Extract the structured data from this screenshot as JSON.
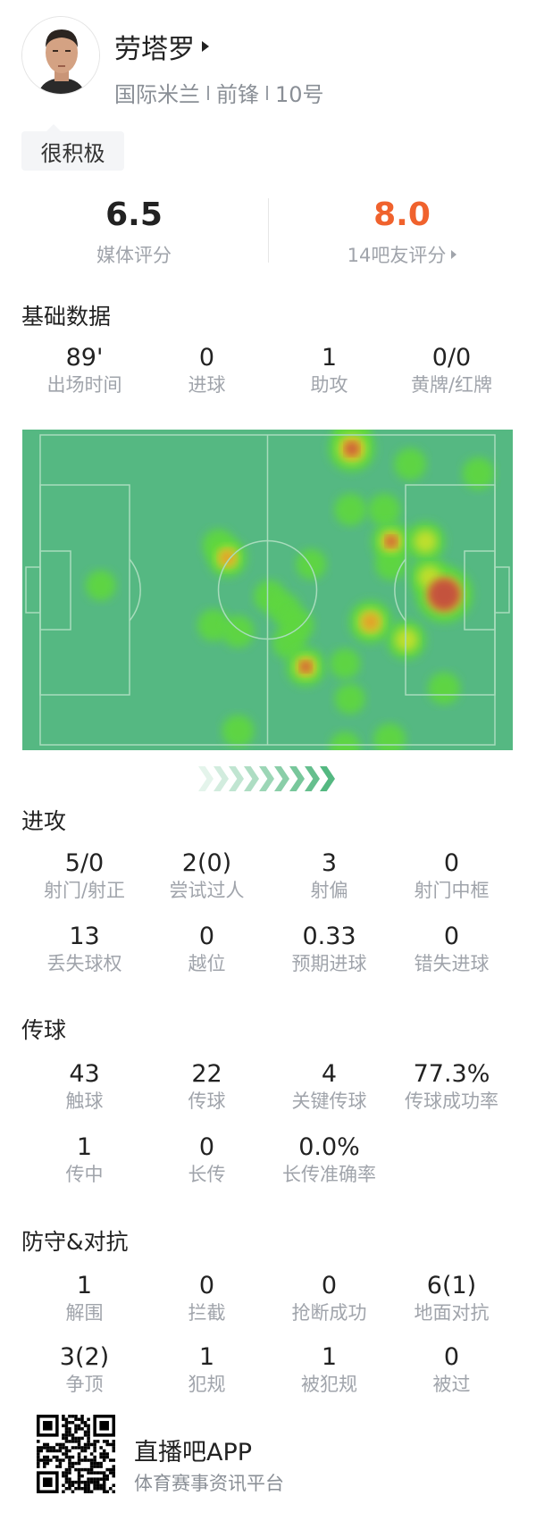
{
  "player": {
    "name": "劳塔罗",
    "team": "国际米兰",
    "position": "前锋",
    "number": "10号",
    "tag": "很积极"
  },
  "ratings": {
    "media": {
      "value": "6.5",
      "label": "媒体评分",
      "color": "#222222"
    },
    "fans": {
      "value": "8.0",
      "label": "14吧友评分",
      "color": "#f0622d"
    }
  },
  "sections": [
    {
      "title": "基础数据",
      "rows": [
        [
          {
            "value": "89'",
            "label": "出场时间"
          },
          {
            "value": "0",
            "label": "进球"
          },
          {
            "value": "1",
            "label": "助攻"
          },
          {
            "value": "0/0",
            "label": "黄牌/红牌"
          }
        ]
      ]
    },
    {
      "title": "进攻",
      "rows": [
        [
          {
            "value": "5/0",
            "label": "射门/射正"
          },
          {
            "value": "2(0)",
            "label": "尝试过人"
          },
          {
            "value": "3",
            "label": "射偏"
          },
          {
            "value": "0",
            "label": "射门中框"
          }
        ],
        [
          {
            "value": "13",
            "label": "丢失球权"
          },
          {
            "value": "0",
            "label": "越位"
          },
          {
            "value": "0.33",
            "label": "预期进球"
          },
          {
            "value": "0",
            "label": "错失进球"
          }
        ]
      ]
    },
    {
      "title": "传球",
      "rows": [
        [
          {
            "value": "43",
            "label": "触球"
          },
          {
            "value": "22",
            "label": "传球"
          },
          {
            "value": "4",
            "label": "关键传球"
          },
          {
            "value": "77.3%",
            "label": "传球成功率"
          }
        ],
        [
          {
            "value": "1",
            "label": "传中"
          },
          {
            "value": "0",
            "label": "长传"
          },
          {
            "value": "0.0%",
            "label": "长传准确率"
          }
        ]
      ]
    },
    {
      "title": "防守&对抗",
      "rows": [
        [
          {
            "value": "1",
            "label": "解围"
          },
          {
            "value": "0",
            "label": "拦截"
          },
          {
            "value": "0",
            "label": "抢断成功"
          },
          {
            "value": "6(1)",
            "label": "地面对抗"
          }
        ],
        [
          {
            "value": "3(2)",
            "label": "争顶"
          },
          {
            "value": "1",
            "label": "犯规"
          },
          {
            "value": "1",
            "label": "被犯规"
          },
          {
            "value": "0",
            "label": "被过"
          }
        ]
      ]
    }
  ],
  "heatmap": {
    "pitch_color": "#55b882",
    "line_color": "#a8dcbc",
    "attack_direction": "right"
  },
  "footer": {
    "app_name": "直播吧APP",
    "app_subtitle": "体育赛事资讯平台"
  }
}
